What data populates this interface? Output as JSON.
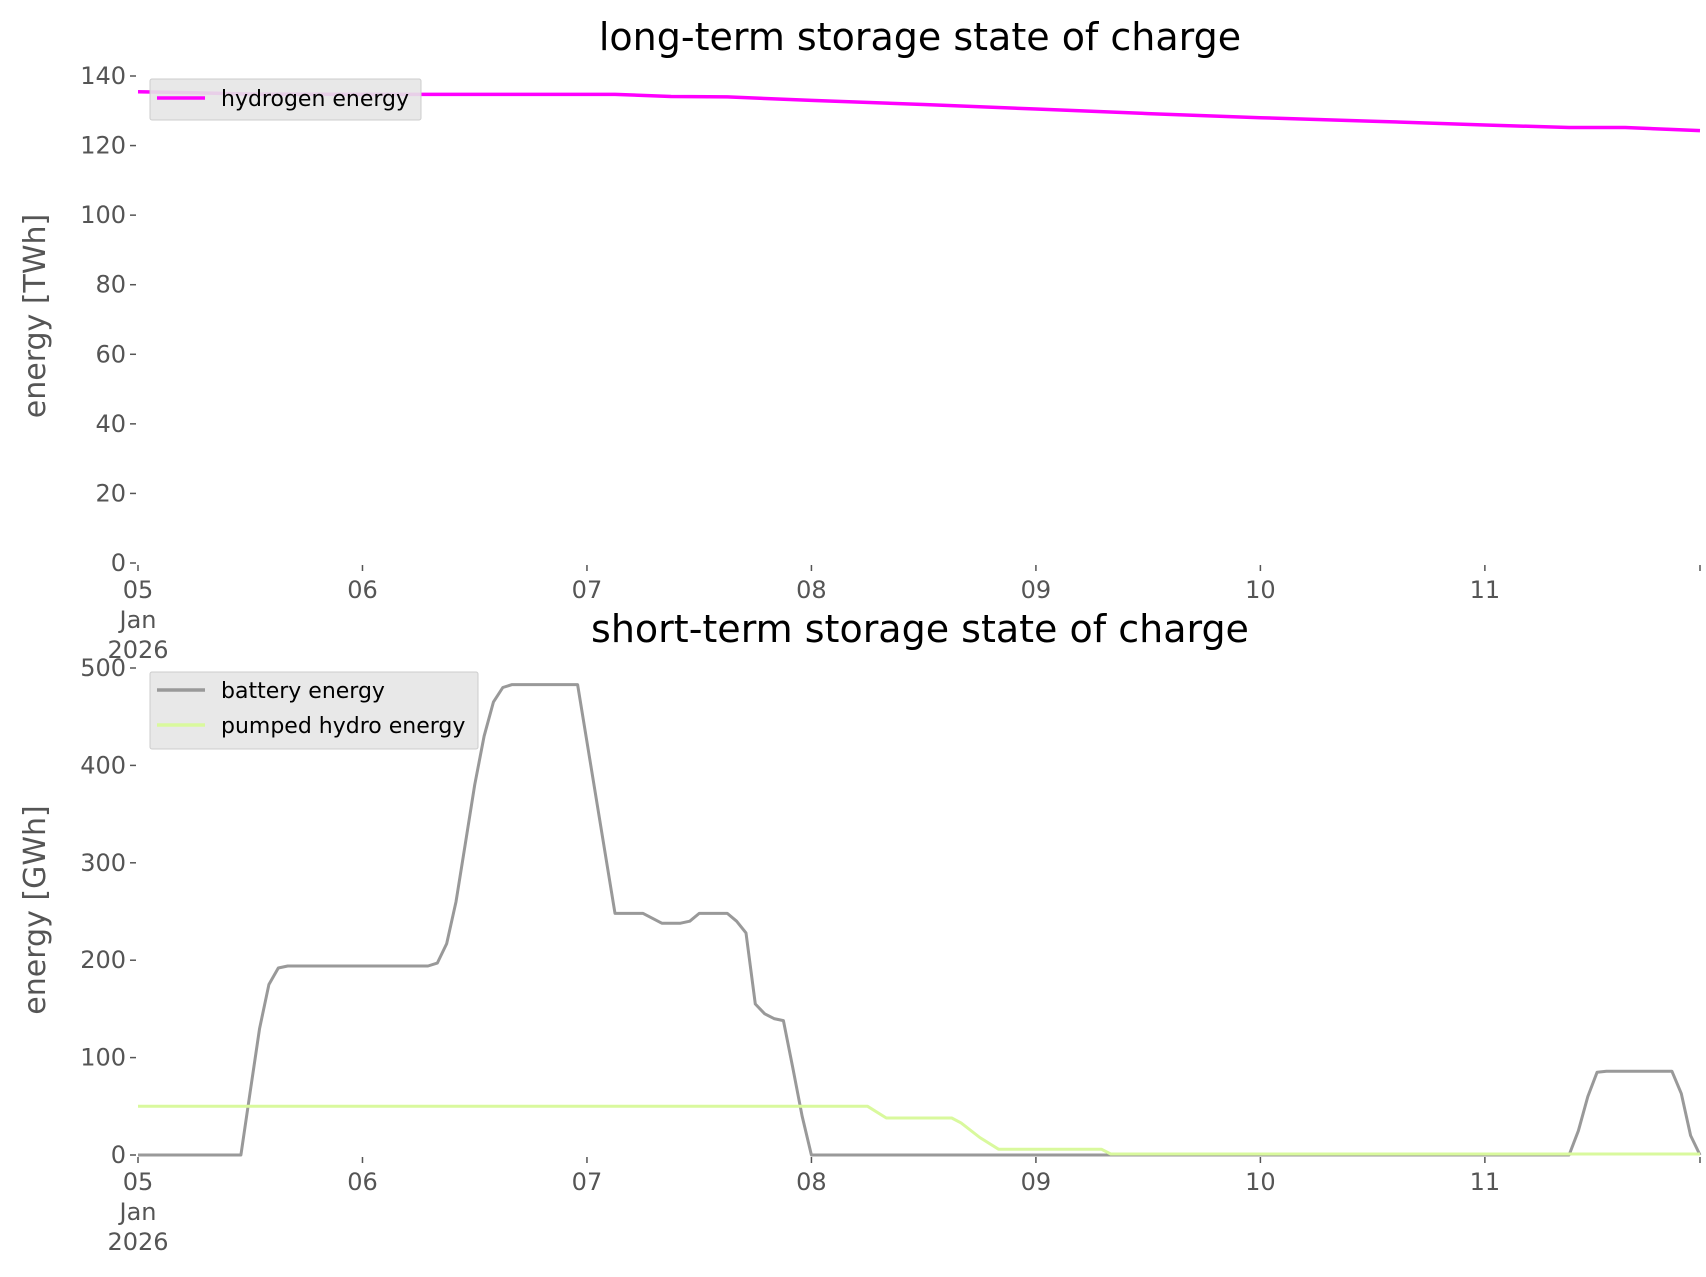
{
  "chart_data": [
    {
      "type": "line",
      "title": "long-term storage state of charge",
      "xlabel": "",
      "ylabel": "energy [TWh]",
      "ylim": [
        0,
        140
      ],
      "xlim": [
        "2026-01-05 00:00",
        "2026-01-11 23:00"
      ],
      "yticks": [
        "0",
        "20",
        "40",
        "60",
        "80",
        "100",
        "120",
        "140"
      ],
      "xticks": [
        {
          "date": "2026-01-05",
          "lines": [
            "05",
            "Jan",
            "2026"
          ]
        },
        {
          "date": "2026-01-06",
          "lines": [
            "06"
          ]
        },
        {
          "date": "2026-01-07",
          "lines": [
            "07"
          ]
        },
        {
          "date": "2026-01-08",
          "lines": [
            "08"
          ]
        },
        {
          "date": "2026-01-09",
          "lines": [
            "09"
          ]
        },
        {
          "date": "2026-01-10",
          "lines": [
            "10"
          ]
        },
        {
          "date": "2026-01-11",
          "lines": [
            "11"
          ]
        }
      ],
      "grid": false,
      "legend_position": "upper-left",
      "series": [
        {
          "name": "hydrogen energy",
          "color": "#ff00ff",
          "x": [
            "2026-01-05 00:00",
            "2026-01-05 06:00",
            "2026-01-05 12:00",
            "2026-01-06 00:00",
            "2026-01-06 12:00",
            "2026-01-07 00:00",
            "2026-01-07 03:00",
            "2026-01-07 09:00",
            "2026-01-07 15:00",
            "2026-01-08 00:00",
            "2026-01-08 12:00",
            "2026-01-09 00:00",
            "2026-01-09 12:00",
            "2026-01-10 00:00",
            "2026-01-10 12:00",
            "2026-01-11 00:00",
            "2026-01-11 09:00",
            "2026-01-11 15:00",
            "2026-01-11 23:00"
          ],
          "y": [
            135.5,
            135.2,
            134.8,
            134.7,
            134.7,
            134.7,
            134.7,
            134.1,
            134.0,
            133.0,
            131.8,
            130.5,
            129.2,
            128.0,
            127.0,
            125.9,
            125.2,
            125.2,
            124.3
          ]
        }
      ]
    },
    {
      "type": "line",
      "title": "short-term storage state of charge",
      "xlabel": "",
      "ylabel": "energy [GWh]",
      "ylim": [
        0,
        500
      ],
      "xlim": [
        "2026-01-05 00:00",
        "2026-01-11 23:00"
      ],
      "yticks": [
        "0",
        "100",
        "200",
        "300",
        "400",
        "500"
      ],
      "xticks": [
        {
          "date": "2026-01-05",
          "lines": [
            "05",
            "Jan",
            "2026"
          ]
        },
        {
          "date": "2026-01-06",
          "lines": [
            "06"
          ]
        },
        {
          "date": "2026-01-07",
          "lines": [
            "07"
          ]
        },
        {
          "date": "2026-01-08",
          "lines": [
            "08"
          ]
        },
        {
          "date": "2026-01-09",
          "lines": [
            "09"
          ]
        },
        {
          "date": "2026-01-10",
          "lines": [
            "10"
          ]
        },
        {
          "date": "2026-01-11",
          "lines": [
            "11"
          ]
        }
      ],
      "grid": false,
      "legend_position": "upper-left",
      "series": [
        {
          "name": "battery energy",
          "color": "#999999",
          "x": [
            "2026-01-05 00:00",
            "2026-01-05 11:00",
            "2026-01-05 12:00",
            "2026-01-05 13:00",
            "2026-01-05 14:00",
            "2026-01-05 15:00",
            "2026-01-05 16:00",
            "2026-01-06 00:00",
            "2026-01-06 07:00",
            "2026-01-06 08:00",
            "2026-01-06 09:00",
            "2026-01-06 10:00",
            "2026-01-06 11:00",
            "2026-01-06 12:00",
            "2026-01-06 13:00",
            "2026-01-06 14:00",
            "2026-01-06 15:00",
            "2026-01-06 16:00",
            "2026-01-06 23:00",
            "2026-01-07 03:00",
            "2026-01-07 06:00",
            "2026-01-07 08:00",
            "2026-01-07 10:00",
            "2026-01-07 11:00",
            "2026-01-07 12:00",
            "2026-01-07 15:00",
            "2026-01-07 16:00",
            "2026-01-07 17:00",
            "2026-01-07 18:00",
            "2026-01-07 19:00",
            "2026-01-07 20:00",
            "2026-01-07 21:00",
            "2026-01-07 22:00",
            "2026-01-07 23:00",
            "2026-01-08 00:00",
            "2026-01-11 09:00",
            "2026-01-11 10:00",
            "2026-01-11 11:00",
            "2026-01-11 12:00",
            "2026-01-11 13:00",
            "2026-01-11 20:00",
            "2026-01-11 21:00",
            "2026-01-11 22:00",
            "2026-01-11 23:00"
          ],
          "y": [
            0,
            0,
            65,
            130,
            175,
            192,
            194,
            194,
            194,
            197,
            217,
            260,
            320,
            380,
            430,
            465,
            480,
            483,
            483,
            248,
            248,
            238,
            238,
            240,
            248,
            248,
            240,
            228,
            155,
            145,
            140,
            138,
            90,
            40,
            0,
            0,
            25,
            60,
            85,
            86,
            86,
            63,
            20,
            0
          ]
        },
        {
          "name": "pumped hydro energy",
          "color": "#d9f99d",
          "x": [
            "2026-01-05 00:00",
            "2026-01-08 06:00",
            "2026-01-08 08:00",
            "2026-01-08 15:00",
            "2026-01-08 16:00",
            "2026-01-08 18:00",
            "2026-01-08 20:00",
            "2026-01-09 07:00",
            "2026-01-09 08:00",
            "2026-01-11 23:00"
          ],
          "y": [
            50,
            50,
            38,
            38,
            33,
            18,
            6,
            6,
            1,
            1
          ]
        }
      ]
    }
  ]
}
